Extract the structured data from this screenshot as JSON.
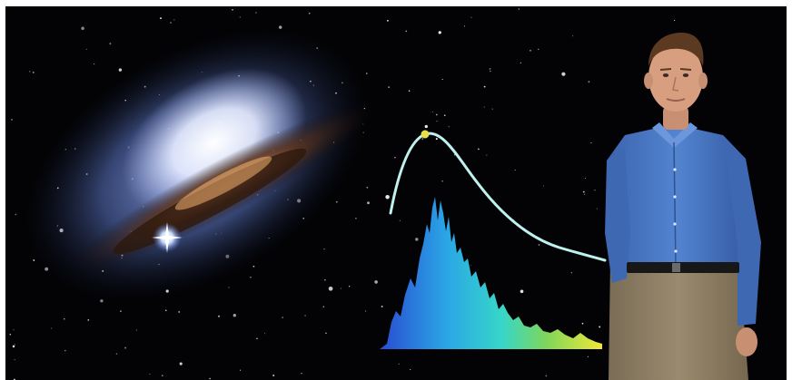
{
  "colors": {
    "background": "#030306",
    "starlight": "#ffffff",
    "galaxy_core": "#f4f6ff",
    "galaxy_halo": "#5d78c8",
    "dust_lane": "#5a3118",
    "bright_star": "#cfe0ff",
    "curve": "#bff1ee",
    "peak_marker": "#e6e04a",
    "shirt": "#4a78c4",
    "trousers": "#8c7d63",
    "belt": "#171717",
    "skin": "#d79f80",
    "hair": "#5c3a22",
    "top_border": "#f0e6a8"
  },
  "scene": {
    "elements": [
      "galaxy",
      "spectrum-histogram",
      "blackbody-curve",
      "peak-marker",
      "person"
    ]
  }
}
